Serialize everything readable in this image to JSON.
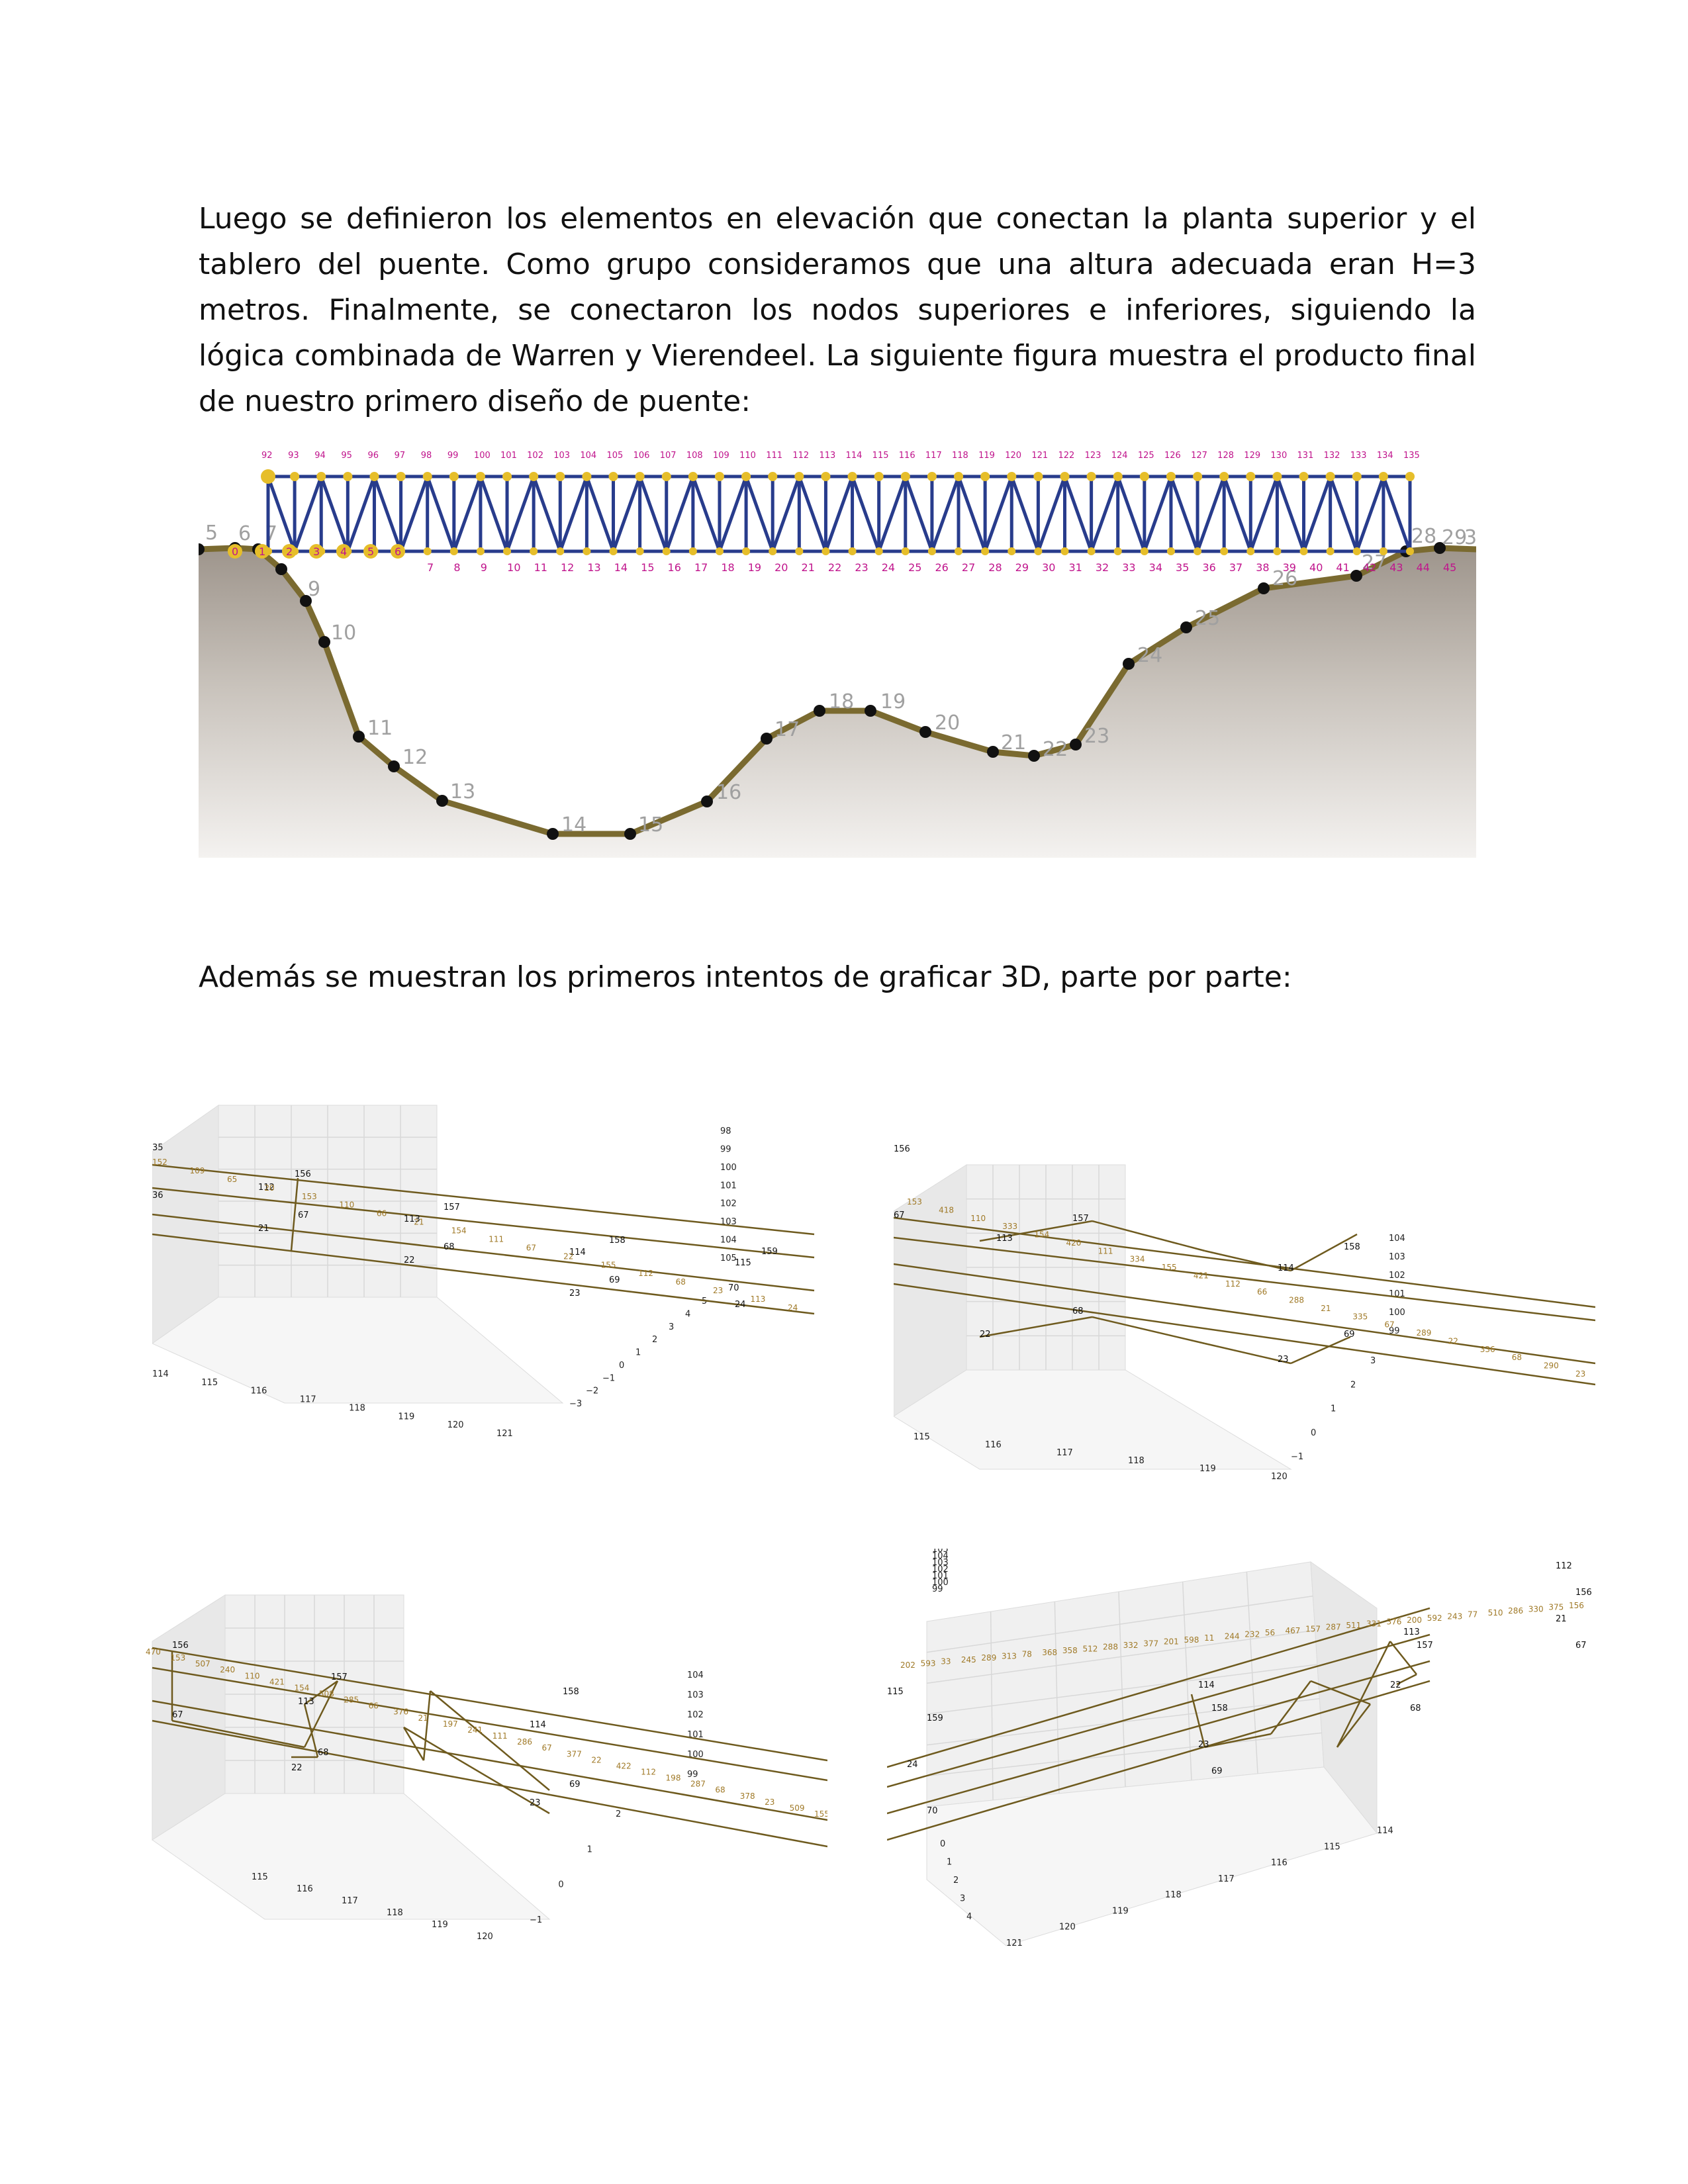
{
  "paragraphs": {
    "p1": "Luego se definieron los elementos en elevación que conectan la planta superior y el tablero del puente. Como grupo consideramos que una altura adecuada eran H=3 metros. Finalmente, se conectaron los nodos superiores e inferiores, siguiendo la lógica combinada de Warren y Vierendeel. La siguiente figura muestra el producto final de nuestro primero diseño de puente:",
    "p2": "Además se muestran los primeros intentos de graficar 3D, parte por parte:"
  },
  "bridge_figure": {
    "top_node_labels": [
      "92",
      "93",
      "94",
      "95",
      "96",
      "97",
      "98",
      "99",
      "100",
      "101",
      "102",
      "103",
      "104",
      "105",
      "106",
      "107",
      "108",
      "109",
      "110",
      "111",
      "112",
      "113",
      "114",
      "115",
      "116",
      "117",
      "118",
      "119",
      "120",
      "121",
      "122",
      "123",
      "124",
      "125",
      "126",
      "127",
      "128",
      "129",
      "130",
      "131",
      "132",
      "133",
      "134",
      "135"
    ],
    "deck_node_labels_left": [
      "0",
      "1",
      "2",
      "3",
      "4",
      "5",
      "6"
    ],
    "deck_node_labels": [
      "7",
      "8",
      "9",
      "10",
      "11",
      "12",
      "13",
      "14",
      "15",
      "16",
      "17",
      "18",
      "19",
      "20",
      "21",
      "22",
      "23",
      "24",
      "25",
      "26",
      "27",
      "28",
      "29",
      "30",
      "31",
      "32",
      "33",
      "34",
      "35",
      "36",
      "37",
      "38",
      "39",
      "40",
      "41",
      "42",
      "43",
      "44",
      "45"
    ],
    "terrain_labels": [
      "5",
      "6",
      "7",
      "9",
      "10",
      "11",
      "12",
      "13",
      "14",
      "15",
      "16",
      "17",
      "18",
      "19",
      "20",
      "21",
      "22",
      "23",
      "24",
      "25",
      "26",
      "27",
      "28",
      "29",
      "3"
    ],
    "colors": {
      "terrain": "#7a6a30",
      "truss": "#283c8c",
      "node": "#e6be2a",
      "ground": "#c9c3bc",
      "label_magenta": "#c0148c",
      "label_gray": "#a0a0a0"
    }
  },
  "plots": {
    "a": {
      "z_ticks": [
        "98",
        "99",
        "100",
        "101",
        "102",
        "103",
        "104",
        "105"
      ],
      "x_ticks": [
        "114",
        "115",
        "116",
        "117",
        "118",
        "119",
        "120",
        "121"
      ],
      "y_ticks": [
        "−3",
        "−2",
        "−1",
        "0",
        "1",
        "2",
        "3",
        "4",
        "5"
      ],
      "node_labels": [
        "156",
        "112",
        "67",
        "21",
        "157",
        "113",
        "68",
        "22",
        "158",
        "114",
        "69",
        "23",
        "159",
        "115",
        "70",
        "24",
        "35",
        "36"
      ],
      "member_labels": [
        "152",
        "109",
        "65",
        "20",
        "153",
        "110",
        "66",
        "21",
        "154",
        "111",
        "67",
        "22",
        "155",
        "112",
        "68",
        "23",
        "113",
        "24"
      ]
    },
    "b": {
      "z_ticks": [
        "99",
        "100",
        "101",
        "102",
        "103",
        "104"
      ],
      "x_ticks": [
        "115",
        "116",
        "117",
        "118",
        "119",
        "120"
      ],
      "y_ticks": [
        "−1",
        "0",
        "1",
        "2",
        "3"
      ],
      "node_labels": [
        "156",
        "157",
        "113",
        "68",
        "22",
        "158",
        "114",
        "69",
        "23",
        "67"
      ],
      "member_labels": [
        "153",
        "418",
        "110",
        "333",
        "154",
        "420",
        "111",
        "334",
        "155",
        "421",
        "112",
        "66",
        "288",
        "21",
        "335",
        "67",
        "289",
        "22",
        "336",
        "68",
        "290",
        "23"
      ]
    },
    "c": {
      "z_ticks": [
        "99",
        "100",
        "101",
        "102",
        "103",
        "104"
      ],
      "x_ticks": [
        "115",
        "116",
        "117",
        "118",
        "119",
        "120"
      ],
      "y_ticks": [
        "−1",
        "0",
        "1",
        "2"
      ],
      "node_labels": [
        "156",
        "157",
        "113",
        "68",
        "22",
        "158",
        "114",
        "69",
        "23",
        "67"
      ],
      "member_labels": [
        "470",
        "153",
        "507",
        "240",
        "110",
        "421",
        "154",
        "508",
        "285",
        "66",
        "376",
        "21",
        "197",
        "241",
        "111",
        "286",
        "67",
        "377",
        "22",
        "422",
        "112",
        "198",
        "287",
        "68",
        "378",
        "23",
        "509",
        "155"
      ]
    },
    "d": {
      "z_ticks": [
        "99",
        "100",
        "101",
        "102",
        "103",
        "104",
        "105"
      ],
      "x_ticks": [
        "121",
        "120",
        "119",
        "118",
        "117",
        "116",
        "115",
        "114"
      ],
      "y_ticks": [
        "0",
        "1",
        "2",
        "3",
        "4"
      ],
      "node_labels": [
        "115",
        "159",
        "24",
        "70",
        "114",
        "158",
        "23",
        "69",
        "113",
        "157",
        "22",
        "68",
        "112",
        "156",
        "21",
        "67"
      ],
      "member_labels": [
        "202",
        "593",
        "33",
        "245",
        "289",
        "313",
        "78",
        "368",
        "358",
        "512",
        "288",
        "332",
        "377",
        "201",
        "598",
        "11",
        "244",
        "232",
        "56",
        "467",
        "157",
        "287",
        "511",
        "331",
        "376",
        "200",
        "592",
        "243",
        "77",
        "510",
        "286",
        "330",
        "375",
        "156"
      ]
    }
  }
}
